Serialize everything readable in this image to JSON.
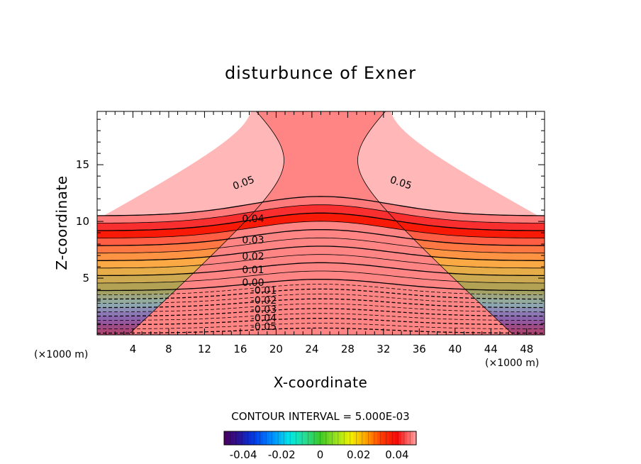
{
  "chart_data": {
    "type": "contour",
    "title": "disturbunce of Exner",
    "xlabel": "X-coordinate",
    "ylabel": "Z-coordinate",
    "x_unit": "(×1000 m)",
    "z_unit": "(×1000 m)",
    "xlim": [
      0,
      50
    ],
    "zlim": [
      0,
      19.7
    ],
    "x_ticks": [
      4,
      8,
      12,
      16,
      20,
      24,
      28,
      32,
      36,
      40,
      44,
      48
    ],
    "z_ticks": [
      5,
      10,
      15
    ],
    "contour_interval_text": "CONTOUR INTERVAL = 5.000E-03",
    "contour_interval": 0.005,
    "value_range": [
      -0.05,
      0.05
    ],
    "field": {
      "description_values": "pi'(x,z) increases upward; contours bow upward over the centre x=25",
      "center_x": 25,
      "zero_line_z_at_edges": 3.9,
      "zero_line_z_at_center": 4.9,
      "max_contour_z_at_edges": 10.5,
      "max_contour_z_at_center": 12.2
    },
    "contour_labels": [
      "0.05",
      "0.05",
      "0.04",
      "0.03",
      "0.02",
      "0.01",
      "0.00",
      "-0.01",
      "-0.02",
      "-0.03",
      "-0.04",
      "-0.05"
    ],
    "colorbar": {
      "ticks": [
        "-0.04",
        "-0.02",
        "0",
        "0.02",
        "0.04"
      ],
      "tick_values": [
        -0.04,
        -0.02,
        0,
        0.02,
        0.04
      ],
      "range": [
        -0.05,
        0.05
      ]
    },
    "grid": false,
    "colormap": "rainbow (purple-blue-cyan-green-yellow-orange-red-pink)"
  }
}
